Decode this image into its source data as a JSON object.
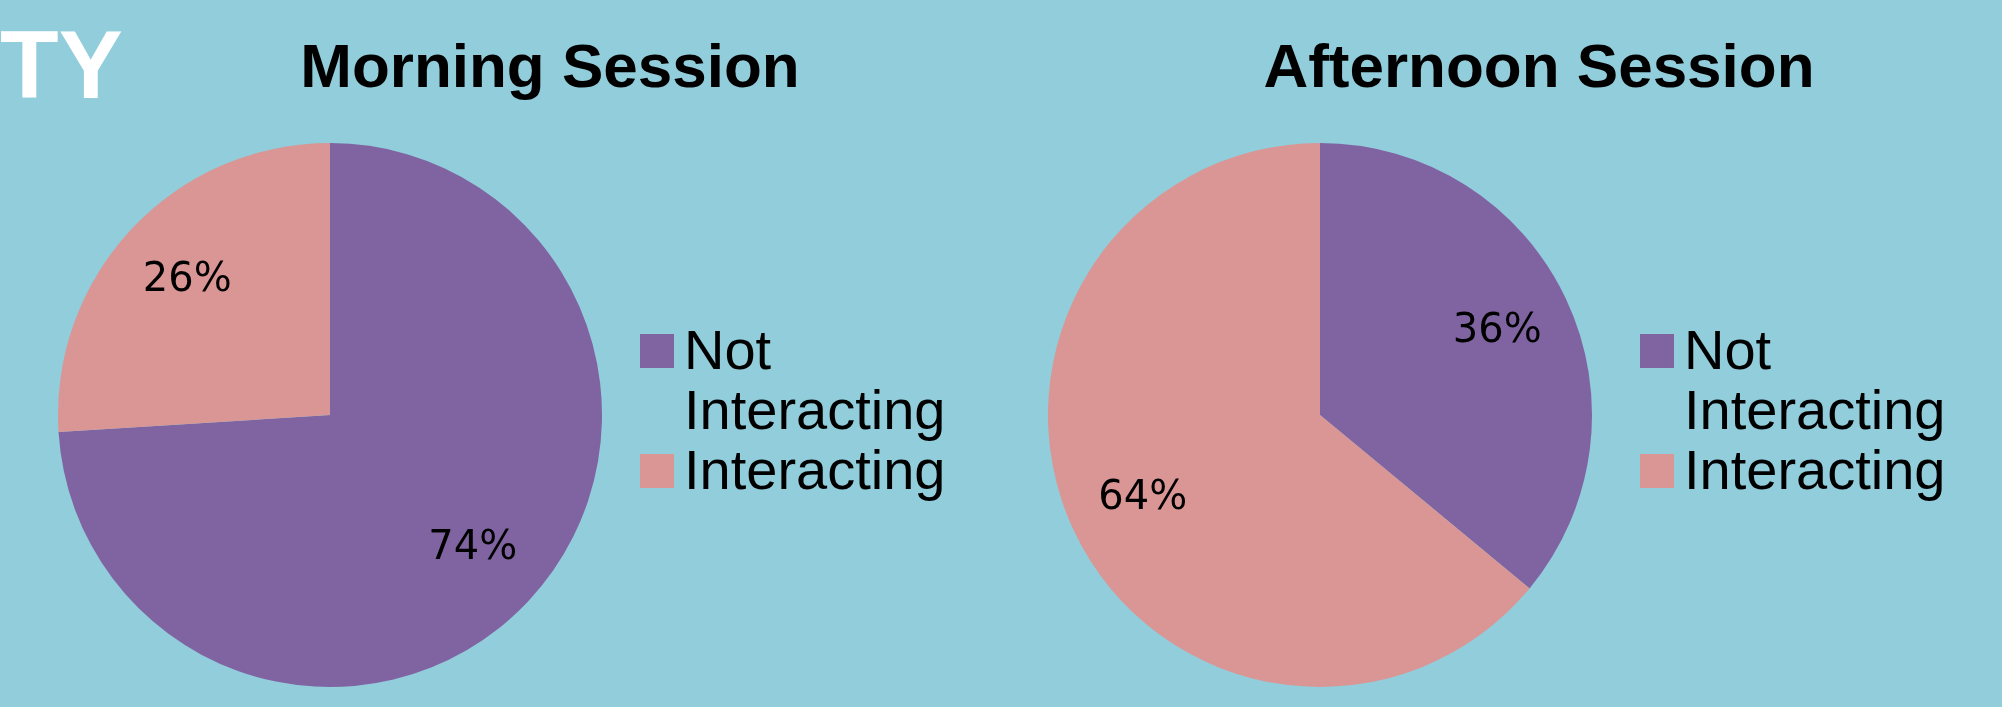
{
  "chart_data": [
    {
      "type": "pie",
      "title": "Morning Session",
      "categories": [
        "Not Interacting",
        "Interacting"
      ],
      "values": [
        74,
        26
      ],
      "value_labels": [
        "74%",
        "26%"
      ],
      "colors": [
        "#8064a2",
        "#d99694"
      ],
      "legend": "right",
      "annotations": [
        "TY"
      ]
    },
    {
      "type": "pie",
      "title": "Afternoon Session",
      "categories": [
        "Not Interacting",
        "Interacting"
      ],
      "values": [
        36,
        64
      ],
      "value_labels": [
        "36%",
        "64%"
      ],
      "colors": [
        "#8064a2",
        "#d99694"
      ],
      "legend": "right"
    }
  ]
}
